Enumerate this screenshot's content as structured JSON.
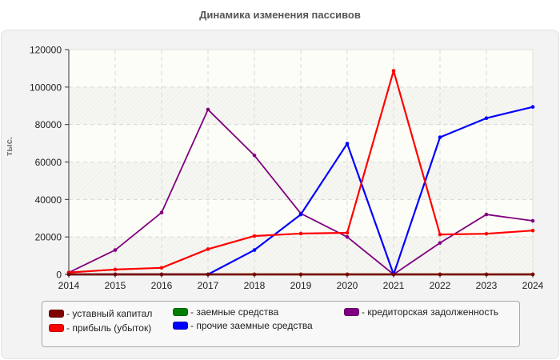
{
  "chart_title": "Динамика изменения пассивов",
  "colors": {
    "panel_bg": "#f3f3f3",
    "plot_bg": "#fdfdf7",
    "grid": "#d8d8d8"
  },
  "legend": {
    "items": [
      {
        "label": "- уставный капитал",
        "color": "#800000"
      },
      {
        "label": "- прибыль (убыток)",
        "color": "#ff0000"
      },
      {
        "label": "- заемные средства",
        "color": "#008000"
      },
      {
        "label": "- прочие заемные средства",
        "color": "#0000ff"
      },
      {
        "label": "- кредиторская задолженность",
        "color": "#800080"
      }
    ]
  },
  "chart_data": {
    "type": "line",
    "title": "Динамика изменения пассивов",
    "xlabel": "",
    "ylabel": "тыс.",
    "x": [
      2014,
      2015,
      2016,
      2017,
      2018,
      2019,
      2020,
      2021,
      2022,
      2023,
      2024
    ],
    "ylim": [
      0,
      120000
    ],
    "yticks": [
      0,
      20000,
      40000,
      60000,
      80000,
      100000,
      120000
    ],
    "grid": true,
    "legend_position": "bottom",
    "series": [
      {
        "name": "уставный капитал",
        "color": "#800000",
        "values": [
          10,
          10,
          10,
          10,
          10,
          10,
          10,
          10,
          10,
          10,
          10
        ]
      },
      {
        "name": "прибыль (убыток)",
        "color": "#ff0000",
        "values": [
          1000,
          2600,
          3500,
          13500,
          20500,
          21800,
          22200,
          108700,
          21300,
          21700,
          23400
        ]
      },
      {
        "name": "заемные средства",
        "color": "#008000",
        "values": [
          0,
          0,
          0,
          0,
          0,
          0,
          0,
          0,
          0,
          0,
          0
        ]
      },
      {
        "name": "прочие заемные средства",
        "color": "#0000ff",
        "values": [
          0,
          0,
          0,
          0,
          13000,
          32000,
          69800,
          0,
          73200,
          83400,
          89400
        ]
      },
      {
        "name": "кредиторская задолженность",
        "color": "#800080",
        "values": [
          1000,
          13000,
          33000,
          88000,
          63500,
          32500,
          20000,
          0,
          16800,
          32000,
          28600
        ]
      }
    ]
  }
}
